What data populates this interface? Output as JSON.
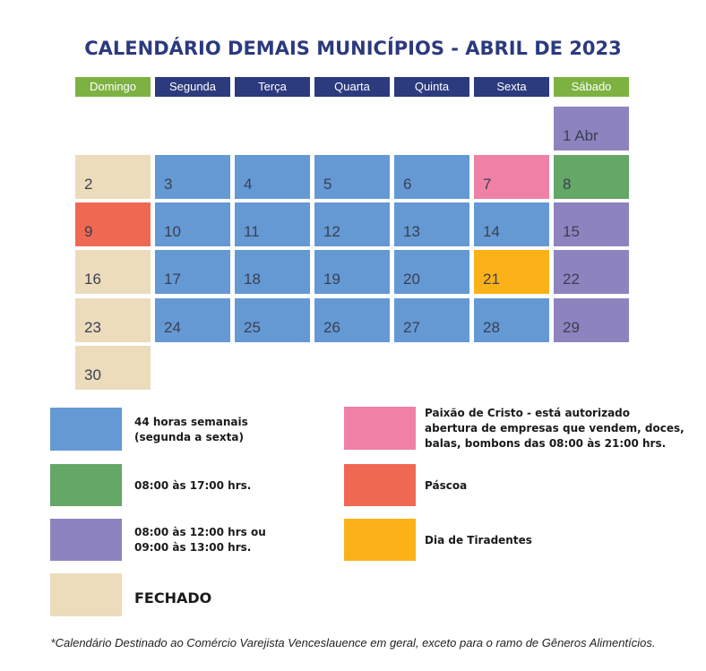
{
  "title": "CALENDÁRIO DEMAIS MUNICÍPIOS - ABRIL DE 2023",
  "colors": {
    "blue": "#6499d4",
    "green": "#65a766",
    "purple": "#8d84bf",
    "beige": "#ecdcbb",
    "pink": "#ef80a6",
    "red": "#ef6952",
    "orange": "#fbb219",
    "header_green": "#7db242",
    "header_navy": "#2c3a7e"
  },
  "weekdays": [
    "Domingo",
    "Segunda",
    "Terça",
    "Quarta",
    "Quinta",
    "Sexta",
    "Sábado"
  ],
  "days": {
    "d1": "1 Abr",
    "d2": "2",
    "d3": "3",
    "d4": "4",
    "d5": "5",
    "d6": "6",
    "d7": "7",
    "d8": "8",
    "d9": "9",
    "d10": "10",
    "d11": "11",
    "d12": "12",
    "d13": "13",
    "d14": "14",
    "d15": "15",
    "d16": "16",
    "d17": "17",
    "d18": "18",
    "d19": "19",
    "d20": "20",
    "d21": "21",
    "d22": "22",
    "d23": "23",
    "d24": "24",
    "d25": "25",
    "d26": "26",
    "d27": "27",
    "d28": "28",
    "d29": "29",
    "d30": "30"
  },
  "legend": {
    "blue": [
      "44 horas semanais",
      "(segunda a sexta)"
    ],
    "green": "08:00 às 17:00 hrs.",
    "purple": [
      "08:00 às 12:00 hrs ou",
      "09:00 às 13:00 hrs."
    ],
    "beige": "FECHADO",
    "pink": [
      "Paixão de Cristo - está autorizado",
      "abertura de empresas que vendem, doces,",
      "balas, bombons das 08:00 às 21:00 hrs."
    ],
    "red": "Páscoa",
    "orange": "Dia de Tiradentes"
  },
  "footnote": "*Calendário Destinado ao Comércio Varejista Venceslauence em geral, exceto para o ramo de Gêneros Alimentícios."
}
